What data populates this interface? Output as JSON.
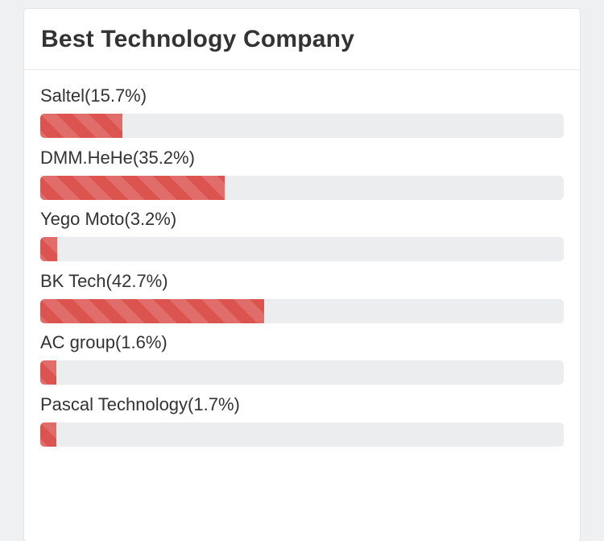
{
  "panel": {
    "title": "Best Technology Company"
  },
  "rows": [
    {
      "label": "Saltel(15.7%)",
      "percent": 15.7
    },
    {
      "label": "DMM.HeHe(35.2%)",
      "percent": 35.2
    },
    {
      "label": "Yego Moto(3.2%)",
      "percent": 3.2
    },
    {
      "label": "BK Tech(42.7%)",
      "percent": 42.7
    },
    {
      "label": "AC group(1.6%)",
      "percent": 1.6
    },
    {
      "label": "Pascal Technology(1.7%)",
      "percent": 1.7
    }
  ],
  "colors": {
    "bar_fill": "#dc5450",
    "bar_track": "#ebedef"
  }
}
